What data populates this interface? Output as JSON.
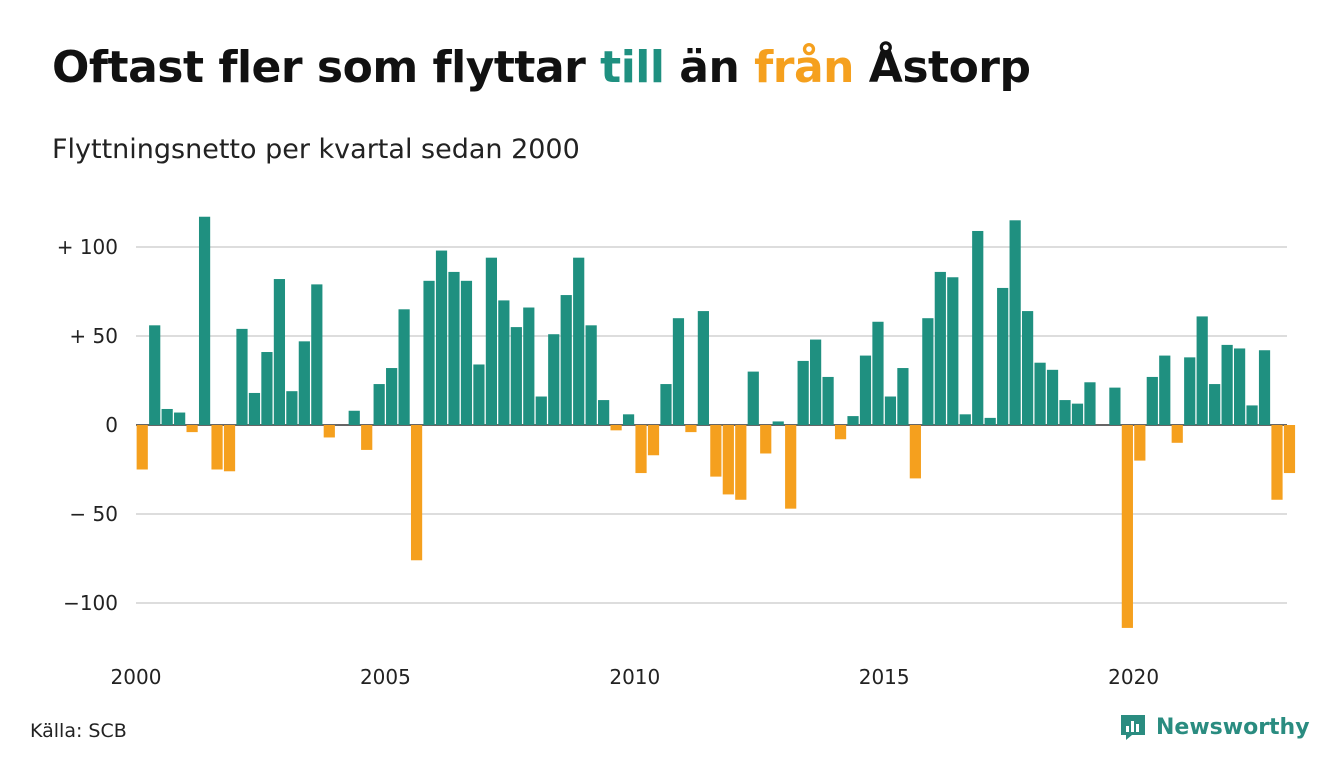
{
  "title": {
    "part1": "Oftast fler som flyttar ",
    "part2": "till",
    "part3": " än ",
    "part4": "från",
    "part5": " Åstorp"
  },
  "subtitle": "Flyttningsnetto per kvartal sedan 2000",
  "source": "Källa: SCB",
  "brand": "Newsworthy",
  "colors": {
    "positive": "#1f9080",
    "negative": "#f5a01e",
    "grid": "#dddddd",
    "text": "#111111"
  },
  "chart_data": {
    "type": "bar",
    "x_start": "2000 Q1",
    "x_ticks": [
      "2000",
      "2005",
      "2010",
      "2015",
      "2020"
    ],
    "y_ticks": [
      "+ 100",
      "+  50",
      "0",
      "− 50",
      "−100"
    ],
    "y_tick_values": [
      100,
      50,
      0,
      -50,
      -100
    ],
    "ylim": [
      -120,
      120
    ],
    "grid": true,
    "values": [
      -25,
      56,
      9,
      7,
      -4,
      117,
      -25,
      -26,
      54,
      18,
      41,
      82,
      19,
      47,
      79,
      -7,
      0,
      8,
      -14,
      23,
      32,
      65,
      -76,
      81,
      98,
      86,
      81,
      34,
      94,
      70,
      55,
      66,
      16,
      51,
      73,
      94,
      56,
      14,
      -3,
      6,
      -27,
      -17,
      23,
      60,
      -4,
      64,
      -29,
      -39,
      -42,
      30,
      -16,
      2,
      -47,
      36,
      48,
      27,
      -8,
      5,
      39,
      58,
      16,
      32,
      -30,
      60,
      86,
      83,
      6,
      109,
      4,
      77,
      115,
      64,
      35,
      31,
      14,
      12,
      24,
      0,
      21,
      -114,
      -20,
      27,
      39,
      -10,
      38,
      61,
      23,
      45,
      43,
      11,
      42,
      -42,
      -27
    ]
  }
}
